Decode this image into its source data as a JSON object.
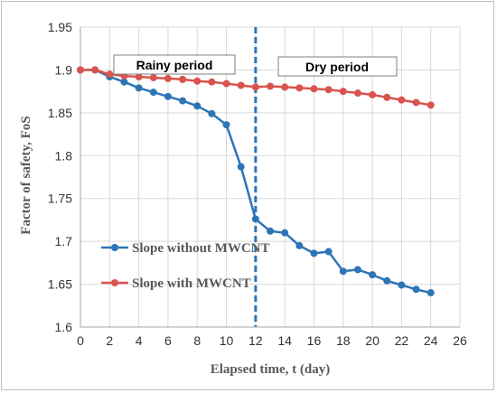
{
  "chart_data": {
    "type": "line",
    "title": "",
    "xlabel": "Elapsed time, t (day)",
    "ylabel": "Factor of safety, FoS",
    "xlim": [
      0,
      26
    ],
    "ylim": [
      1.6,
      1.95
    ],
    "xticks": [
      0,
      2,
      4,
      6,
      8,
      10,
      12,
      14,
      16,
      18,
      20,
      22,
      24,
      26
    ],
    "yticks": [
      "1.6",
      "1.65",
      "1.7",
      "1.75",
      "1.8",
      "1.85",
      "1.9",
      "1.95"
    ],
    "grid": true,
    "series": [
      {
        "name": "Slope without MWCNT",
        "color": "#2e75b6",
        "x": [
          0,
          1,
          2,
          3,
          4,
          5,
          6,
          7,
          8,
          9,
          10,
          11,
          12,
          13,
          14,
          15,
          16,
          17,
          18,
          19,
          20,
          21,
          22,
          23,
          24
        ],
        "y": [
          1.9,
          1.9,
          1.892,
          1.886,
          1.879,
          1.874,
          1.869,
          1.864,
          1.858,
          1.849,
          1.836,
          1.787,
          1.726,
          1.712,
          1.71,
          1.695,
          1.686,
          1.688,
          1.665,
          1.667,
          1.661,
          1.654,
          1.649,
          1.644,
          1.64
        ]
      },
      {
        "name": "Slope with MWCNT",
        "color": "#d9534f",
        "x": [
          0,
          1,
          2,
          3,
          4,
          5,
          6,
          7,
          8,
          9,
          10,
          11,
          12,
          13,
          14,
          15,
          16,
          17,
          18,
          19,
          20,
          21,
          22,
          23,
          24
        ],
        "y": [
          1.9,
          1.9,
          1.895,
          1.893,
          1.892,
          1.891,
          1.89,
          1.889,
          1.887,
          1.886,
          1.884,
          1.882,
          1.88,
          1.881,
          1.88,
          1.879,
          1.878,
          1.877,
          1.875,
          1.873,
          1.871,
          1.868,
          1.865,
          1.862,
          1.859
        ]
      }
    ],
    "vline": {
      "x": 12,
      "color": "#2e75b6",
      "style": "dashed"
    },
    "annotations": [
      {
        "text": "Rainy period"
      },
      {
        "text": "Dry period"
      }
    ],
    "legend": {
      "placement": "bottom-left"
    }
  }
}
